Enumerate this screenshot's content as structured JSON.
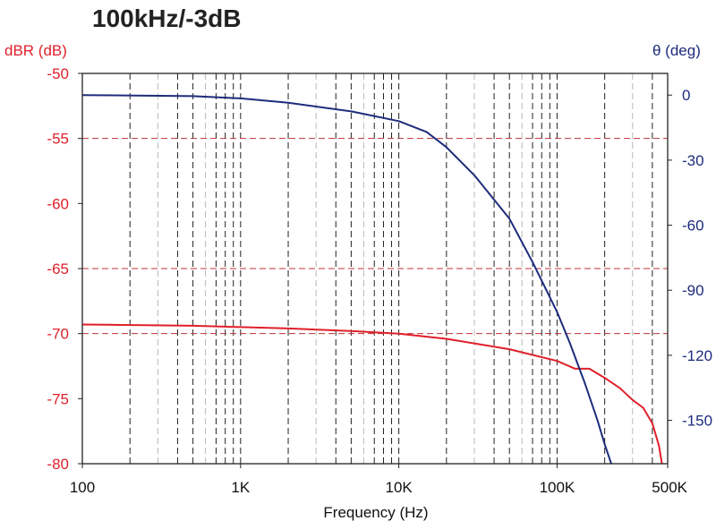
{
  "chart_data": {
    "type": "line",
    "title": "100kHz/-3dB",
    "xlabel": "Frequency (Hz)",
    "x_scale": "log",
    "xlim": [
      100,
      500000
    ],
    "x_ticks": [
      {
        "value": 100,
        "label": "100"
      },
      {
        "value": 1000,
        "label": "1K"
      },
      {
        "value": 10000,
        "label": "10K"
      },
      {
        "value": 100000,
        "label": "100K"
      },
      {
        "value": 500000,
        "label": "500K"
      }
    ],
    "y_left": {
      "label": "dBR (dB)",
      "lim": [
        -80,
        -50
      ],
      "ticks": [
        -50,
        -55,
        -60,
        -65,
        -70,
        -75,
        -80
      ],
      "color": "#e0202a"
    },
    "y_right": {
      "label": "θ (deg)",
      "lim": [
        -170,
        10
      ],
      "ticks": [
        0,
        -30,
        -60,
        -90,
        -120,
        -150
      ],
      "color": "#1e2c7c"
    },
    "grid": {
      "vertical": "dashed at decade subdivisions",
      "horizontal_left": [
        -55,
        -65,
        -70
      ],
      "horizontal_color": "#c0303a"
    },
    "series": [
      {
        "axis": "left",
        "color": "#e0202a",
        "points": [
          [
            100,
            -69.3
          ],
          [
            500,
            -69.4
          ],
          [
            1000,
            -69.5
          ],
          [
            2000,
            -69.6
          ],
          [
            5000,
            -69.8
          ],
          [
            10000,
            -70.0
          ],
          [
            20000,
            -70.4
          ],
          [
            50000,
            -71.2
          ],
          [
            100000,
            -72.1
          ],
          [
            130000,
            -72.7
          ],
          [
            160000,
            -72.7
          ],
          [
            200000,
            -73.4
          ],
          [
            250000,
            -74.2
          ],
          [
            300000,
            -75.1
          ],
          [
            350000,
            -75.7
          ],
          [
            400000,
            -76.9
          ],
          [
            440000,
            -78.6
          ],
          [
            460000,
            -80
          ]
        ]
      },
      {
        "axis": "right",
        "color": "#1e2c7c",
        "points": [
          [
            100,
            0
          ],
          [
            500,
            -0.5
          ],
          [
            1000,
            -1.5
          ],
          [
            2000,
            -3.5
          ],
          [
            5000,
            -7.5
          ],
          [
            10000,
            -12
          ],
          [
            15000,
            -17
          ],
          [
            20000,
            -24
          ],
          [
            30000,
            -37
          ],
          [
            50000,
            -57
          ],
          [
            70000,
            -77
          ],
          [
            100000,
            -100
          ],
          [
            120000,
            -114
          ],
          [
            150000,
            -133
          ],
          [
            180000,
            -150
          ],
          [
            200000,
            -161
          ],
          [
            220000,
            -170
          ]
        ]
      }
    ]
  }
}
